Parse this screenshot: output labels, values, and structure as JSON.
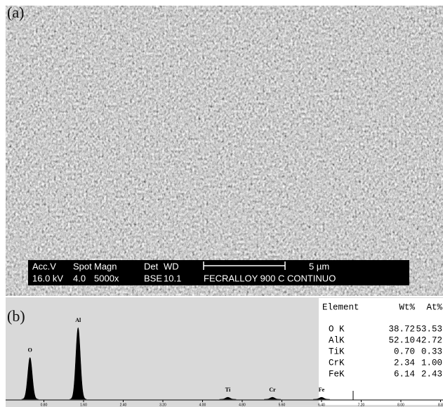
{
  "panel_a": {
    "label": "(a)",
    "info_bar": {
      "row1": [
        "Acc.V",
        "Spot",
        "Magn",
        "Det",
        "WD"
      ],
      "scale": "5 µm",
      "row2": [
        "16.0 kV",
        "4.0",
        "5000x",
        "BSE",
        "10.1",
        "FECRALLOY 900 C CONTINUO"
      ]
    }
  },
  "panel_b": {
    "label": "(b)",
    "table": {
      "header": [
        "Element",
        "Wt%",
        "At%"
      ],
      "rows": [
        [
          "O K",
          "38.72",
          "53.53"
        ],
        [
          "AlK",
          "52.10",
          "42.72"
        ],
        [
          "TiK",
          "0.70",
          "0.33"
        ],
        [
          "CrK",
          "2.34",
          "1.00"
        ],
        [
          "FeK",
          "6.14",
          "2.43"
        ]
      ]
    }
  },
  "chart_data": {
    "type": "spectrum",
    "categories": [
      "O",
      "Al",
      "Ti",
      "Cr",
      "Fe"
    ],
    "x": [
      0.52,
      1.49,
      4.51,
      5.41,
      6.4
    ],
    "values": [
      63,
      108,
      3,
      3,
      3
    ],
    "color": "#000000",
    "xlim": [
      0,
      8.85
    ],
    "ylim": [
      0,
      120
    ],
    "xticks": [
      {
        "value": 0.8,
        "label": "0.80"
      },
      {
        "value": 1.6,
        "label": "1.60"
      },
      {
        "value": 2.4,
        "label": "2.40"
      },
      {
        "value": 3.2,
        "label": "3.20"
      },
      {
        "value": 4,
        "label": "4.00"
      },
      {
        "value": 4.8,
        "label": "4.80"
      },
      {
        "value": 5.6,
        "label": "5.60"
      },
      {
        "value": 6.4,
        "label": "6.40"
      },
      {
        "value": 7.2,
        "label": "7.20"
      },
      {
        "value": 8,
        "label": "8.00"
      },
      {
        "value": 8.8,
        "label": "8.8"
      }
    ]
  }
}
